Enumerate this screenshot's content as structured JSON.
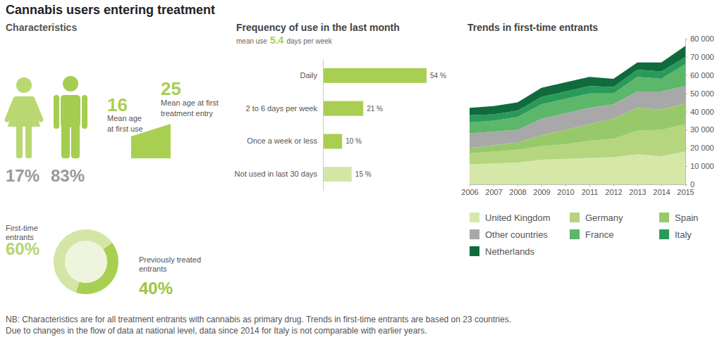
{
  "title": "Cannabis users entering treatment",
  "characteristics": {
    "heading": "Characteristics",
    "female": {
      "value": 17,
      "label": "17%"
    },
    "male": {
      "value": 83,
      "label": "83%"
    },
    "age_first_use": {
      "value": 16,
      "label": [
        "Mean age",
        "at first use"
      ]
    },
    "age_first_treatment": {
      "value": 25,
      "label": [
        "Mean age at first",
        "treatment entry"
      ]
    }
  },
  "chart_data": [
    {
      "type": "pie",
      "categories": [
        "First-time entrants",
        "Previously treated entrants"
      ],
      "values": [
        60,
        40
      ],
      "value_labels": [
        "60%",
        "40%"
      ],
      "colors": [
        "#d3e6a6",
        "#a9cf52"
      ],
      "data_labels": true
    },
    {
      "type": "bar",
      "orientation": "horizontal",
      "title": "Frequency of use in the last month",
      "subtitle": {
        "text_before": "mean use",
        "value": 5.4,
        "text_after": "days per week"
      },
      "categories": [
        "Daily",
        "2 to 6 days per week",
        "Once a week or less",
        "Not used in last 30 days"
      ],
      "values": [
        54,
        21,
        10,
        15
      ],
      "value_labels": [
        "54 %",
        "21 %",
        "10 %",
        "15 %"
      ],
      "colors": [
        "#a9cf52",
        "#a9cf52",
        "#a9cf52",
        "#d3e6a6"
      ],
      "data_labels": true,
      "xlim": [
        0,
        54
      ],
      "tick_labels": "y"
    },
    {
      "type": "area",
      "stacked": true,
      "title": "Trends in first-time entrants",
      "x": [
        2006,
        2007,
        2008,
        2009,
        2010,
        2011,
        2012,
        2013,
        2014,
        2015
      ],
      "xlim": [
        2006,
        2015
      ],
      "xticks": [
        2006,
        2007,
        2008,
        2009,
        2010,
        2011,
        2012,
        2013,
        2014,
        2015
      ],
      "ylim": [
        0,
        80000
      ],
      "yticks": [
        0,
        {
          "value": 10000,
          "label": "10 000"
        },
        {
          "value": 20000,
          "label": "20 000"
        },
        {
          "value": 30000,
          "label": "30 000"
        },
        {
          "value": 40000,
          "label": "40 000"
        },
        {
          "value": 50000,
          "label": "50 000"
        },
        {
          "value": 60000,
          "label": "60 000"
        },
        {
          "value": 70000,
          "label": "70 000"
        },
        {
          "value": 80000,
          "label": "80 000"
        }
      ],
      "grid": false,
      "legend": "bottom",
      "series": [
        {
          "name": "United Kingdom",
          "color": "#d5e8a8",
          "values": [
            11000,
            11500,
            12000,
            13500,
            14000,
            14500,
            15000,
            16500,
            15500,
            18000
          ]
        },
        {
          "name": "Germany",
          "color": "#b5d57e",
          "values": [
            6000,
            6500,
            7000,
            7500,
            8000,
            9500,
            10000,
            13000,
            14500,
            15000
          ]
        },
        {
          "name": "Spain",
          "color": "#97c96a",
          "values": [
            3000,
            3500,
            4000,
            6000,
            8000,
            9000,
            11000,
            12500,
            11000,
            11500
          ]
        },
        {
          "name": "Other countries",
          "color": "#a8a8a8",
          "values": [
            8000,
            7500,
            7000,
            9000,
            9000,
            9000,
            8000,
            9000,
            10000,
            9500
          ]
        },
        {
          "name": "France",
          "color": "#5cb76a",
          "values": [
            6000,
            6000,
            7000,
            8000,
            8000,
            8000,
            6000,
            8000,
            7000,
            12000
          ]
        },
        {
          "name": "Italy",
          "color": "#2a9a5a",
          "values": [
            4000,
            3500,
            3500,
            4000,
            4000,
            4000,
            3500,
            4000,
            4000,
            4000
          ]
        },
        {
          "name": "Netherlands",
          "color": "#0f6b3c",
          "values": [
            4000,
            4500,
            4500,
            5000,
            5000,
            5000,
            4500,
            4000,
            5000,
            6000
          ]
        }
      ]
    }
  ],
  "notes": [
    "NB: Characteristics are for all treatment entrants with cannabis as primary drug. Trends in first-time entrants are based on 23 countries.",
    "Due to changes in the flow of data at national level, data since 2014 for Italy is not comparable with earlier years."
  ]
}
